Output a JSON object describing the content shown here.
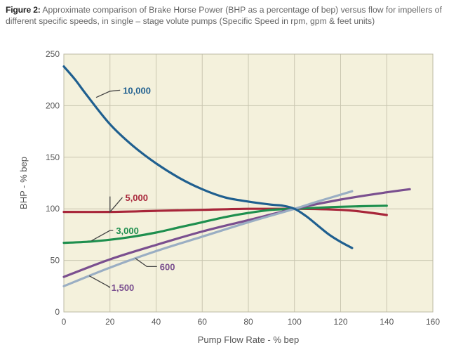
{
  "figure": {
    "label": "Figure 2:",
    "caption": "Approximate comparison of Brake Horse Power (BHP as a percentage of bep) versus flow for impellers of different specific speeds, in single – stage volute pumps (Specific Speed in rpm, gpm & feet units)"
  },
  "chart_data": {
    "type": "line",
    "xlabel": "Pump Flow Rate - % bep",
    "ylabel": "BHP - % bep",
    "xlim": [
      0,
      160
    ],
    "ylim": [
      0,
      250
    ],
    "xticks": [
      "0",
      "20",
      "40",
      "60",
      "80",
      "100",
      "120",
      "140",
      "160"
    ],
    "yticks": [
      "0",
      "50",
      "100",
      "150",
      "200",
      "250"
    ],
    "grid": true,
    "background": "#f4f1dc",
    "series": [
      {
        "name": "10,000",
        "color": "#1f5f8f",
        "x": [
          0,
          5,
          10,
          20,
          30,
          40,
          50,
          60,
          70,
          80,
          90,
          95,
          100,
          105,
          110,
          115,
          120,
          125
        ],
        "y": [
          238,
          225,
          210,
          182,
          161,
          144,
          130,
          119,
          111,
          107,
          104,
          103,
          100,
          93,
          84,
          75,
          68,
          62
        ]
      },
      {
        "name": "5,000",
        "color": "#a8263a",
        "x": [
          0,
          20,
          40,
          60,
          80,
          100,
          120,
          130,
          140
        ],
        "y": [
          97,
          97,
          98,
          99,
          100,
          100,
          99,
          97,
          94
        ]
      },
      {
        "name": "3,000",
        "color": "#1e8f4e",
        "x": [
          0,
          10,
          20,
          30,
          40,
          50,
          60,
          70,
          80,
          90,
          100,
          110,
          120,
          140
        ],
        "y": [
          67,
          68,
          70,
          73,
          77,
          82,
          87,
          92,
          96,
          99,
          100,
          101,
          102,
          103
        ]
      },
      {
        "name": "1,500",
        "color": "#9aaec3",
        "x": [
          0,
          20,
          40,
          60,
          80,
          100,
          110,
          125
        ],
        "y": [
          25,
          43,
          59,
          73,
          87,
          100,
          107,
          117
        ]
      },
      {
        "name": "600",
        "color": "#7a4f8f",
        "x": [
          0,
          20,
          40,
          60,
          80,
          100,
          120,
          140,
          150
        ],
        "y": [
          34,
          51,
          65,
          78,
          89,
          100,
          109,
          116,
          119
        ]
      }
    ],
    "labels": [
      {
        "series": "10,000",
        "text": "10,000",
        "color": "#1f5f8f"
      },
      {
        "series": "5,000",
        "text": "5,000",
        "color": "#a8263a"
      },
      {
        "series": "3,000",
        "text": "3,000",
        "color": "#1e8f4e"
      },
      {
        "series": "600",
        "text": "600",
        "color": "#7a4f8f"
      },
      {
        "series": "1,500",
        "text": "1,500",
        "color": "#7a4f8f"
      }
    ]
  }
}
